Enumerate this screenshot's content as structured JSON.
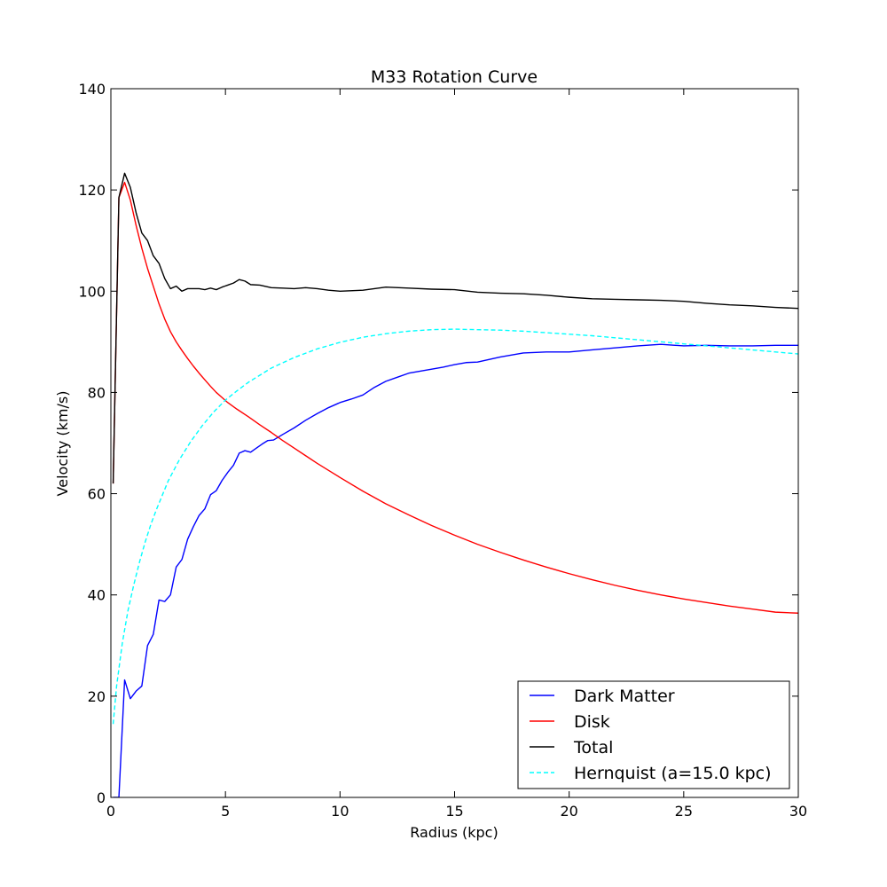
{
  "chart_data": {
    "type": "line",
    "title": "M33 Rotation Curve",
    "xlabel": "Radius (kpc)",
    "ylabel": "Velocity (km/s)",
    "xlim": [
      0,
      30
    ],
    "ylim": [
      0,
      140
    ],
    "xticks": [
      0,
      5,
      10,
      15,
      20,
      25,
      30
    ],
    "yticks": [
      0,
      20,
      40,
      60,
      80,
      100,
      120,
      140
    ],
    "grid": false,
    "legend_position": "lower-right",
    "series": [
      {
        "name": "Dark Matter",
        "color": "#0000ff",
        "dash": "solid",
        "x": [
          0.1,
          0.35,
          0.6,
          0.85,
          1.1,
          1.35,
          1.6,
          1.85,
          2.1,
          2.35,
          2.6,
          2.85,
          3.1,
          3.35,
          3.6,
          3.85,
          4.1,
          4.35,
          4.6,
          4.85,
          5.1,
          5.35,
          5.6,
          5.85,
          6.1,
          6.35,
          6.6,
          6.85,
          7.1,
          7.5,
          8.0,
          8.5,
          9.0,
          9.5,
          10.0,
          10.5,
          11.0,
          11.5,
          12.0,
          12.5,
          13.0,
          13.5,
          14.0,
          14.5,
          15.0,
          15.5,
          16.0,
          17.0,
          18.0,
          19.0,
          20.0,
          21.0,
          22.0,
          23.0,
          24.0,
          25.0,
          26.0,
          27.0,
          28.0,
          29.0,
          30.0
        ],
        "y": [
          0,
          0,
          23.2,
          19.5,
          21.0,
          22.0,
          30.0,
          32.2,
          39.0,
          38.7,
          40.0,
          45.5,
          47.0,
          51.0,
          53.5,
          55.7,
          57.0,
          59.8,
          60.6,
          62.6,
          64.2,
          65.6,
          68.0,
          68.5,
          68.2,
          69.0,
          69.8,
          70.5,
          70.6,
          71.7,
          73.0,
          74.5,
          75.8,
          77.0,
          78.0,
          78.7,
          79.5,
          81.0,
          82.2,
          83.0,
          83.8,
          84.2,
          84.6,
          85.0,
          85.5,
          85.9,
          86.0,
          87.0,
          87.8,
          88.0,
          88.0,
          88.4,
          88.8,
          89.2,
          89.5,
          89.2,
          89.3,
          89.2,
          89.2,
          89.3,
          89.3
        ]
      },
      {
        "name": "Disk",
        "color": "#ff0000",
        "dash": "solid",
        "x": [
          0.1,
          0.35,
          0.6,
          0.85,
          1.1,
          1.35,
          1.6,
          1.85,
          2.1,
          2.35,
          2.6,
          2.85,
          3.1,
          3.35,
          3.6,
          3.85,
          4.1,
          4.35,
          4.6,
          4.85,
          5.1,
          5.5,
          6.0,
          6.5,
          7.0,
          7.5,
          8.0,
          8.5,
          9.0,
          9.5,
          10.0,
          11.0,
          12.0,
          13.0,
          14.0,
          15.0,
          16.0,
          17.0,
          18.0,
          19.0,
          20.0,
          21.0,
          22.0,
          23.0,
          24.0,
          25.0,
          26.0,
          27.0,
          28.0,
          29.0,
          30.0
        ],
        "y": [
          62.0,
          118.5,
          121.5,
          118.0,
          113.0,
          108.5,
          104.5,
          101.0,
          97.5,
          94.5,
          92.0,
          90.0,
          88.3,
          86.7,
          85.2,
          83.8,
          82.5,
          81.2,
          80.0,
          79.0,
          78.0,
          76.7,
          75.2,
          73.6,
          72.1,
          70.5,
          69.0,
          67.5,
          66.0,
          64.6,
          63.2,
          60.5,
          58.0,
          55.8,
          53.7,
          51.8,
          50.0,
          48.4,
          46.9,
          45.5,
          44.2,
          43.0,
          41.9,
          40.9,
          40.0,
          39.2,
          38.5,
          37.8,
          37.2,
          36.6,
          36.4
        ]
      },
      {
        "name": "Total",
        "color": "#000000",
        "dash": "solid",
        "x": [
          0.1,
          0.35,
          0.6,
          0.85,
          1.1,
          1.35,
          1.6,
          1.85,
          2.1,
          2.35,
          2.6,
          2.85,
          3.1,
          3.35,
          3.6,
          3.85,
          4.1,
          4.35,
          4.6,
          4.85,
          5.1,
          5.35,
          5.6,
          5.85,
          6.1,
          6.5,
          7.0,
          7.5,
          8.0,
          8.5,
          9.0,
          9.5,
          10.0,
          11.0,
          12.0,
          13.0,
          14.0,
          15.0,
          16.0,
          17.0,
          18.0,
          19.0,
          20.0,
          21.0,
          22.0,
          23.0,
          24.0,
          25.0,
          26.0,
          27.0,
          28.0,
          29.0,
          30.0
        ],
        "y": [
          62.0,
          118.5,
          123.3,
          120.5,
          115.5,
          111.5,
          110.0,
          107.0,
          105.5,
          102.5,
          100.5,
          101.0,
          100.0,
          100.5,
          100.5,
          100.5,
          100.3,
          100.6,
          100.3,
          100.8,
          101.2,
          101.6,
          102.3,
          102.0,
          101.3,
          101.2,
          100.7,
          100.6,
          100.5,
          100.7,
          100.5,
          100.2,
          100.0,
          100.2,
          100.8,
          100.6,
          100.4,
          100.3,
          99.8,
          99.6,
          99.5,
          99.2,
          98.8,
          98.5,
          98.4,
          98.3,
          98.2,
          98.0,
          97.6,
          97.3,
          97.1,
          96.8,
          96.6
        ]
      },
      {
        "name": "Hernquist (a=15.0 kpc)",
        "color": "#00ffff",
        "dash": "dashed",
        "x": [
          0.1,
          0.25,
          0.5,
          0.75,
          1.0,
          1.25,
          1.5,
          1.75,
          2.0,
          2.5,
          3.0,
          3.5,
          4.0,
          4.5,
          5.0,
          5.5,
          6.0,
          7.0,
          8.0,
          9.0,
          10.0,
          11.0,
          12.0,
          13.0,
          14.0,
          15.0,
          16.0,
          17.0,
          18.0,
          19.0,
          20.0,
          21.0,
          22.0,
          23.0,
          24.0,
          25.0,
          26.0,
          27.0,
          28.0,
          29.0,
          30.0
        ],
        "y": [
          14.5,
          22.0,
          30.5,
          37.0,
          42.0,
          46.5,
          50.5,
          54.0,
          57.0,
          62.5,
          66.8,
          70.4,
          73.5,
          76.2,
          78.5,
          80.3,
          82.0,
          84.8,
          86.9,
          88.6,
          89.9,
          90.9,
          91.6,
          92.1,
          92.4,
          92.5,
          92.4,
          92.3,
          92.1,
          91.8,
          91.5,
          91.2,
          90.8,
          90.4,
          90.0,
          89.6,
          89.2,
          88.8,
          88.4,
          88.0,
          87.6
        ]
      }
    ]
  }
}
